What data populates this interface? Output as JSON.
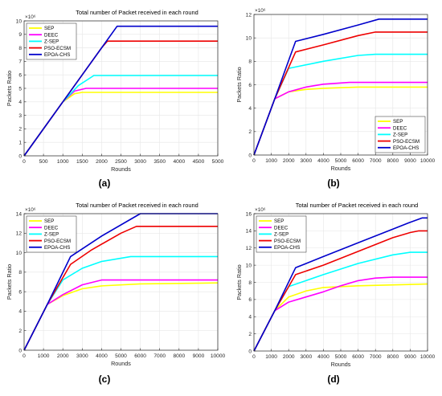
{
  "colors": {
    "SEP": "#ffff00",
    "DEEC": "#ff00ff",
    "Z-SEP": "#00ffff",
    "PSO-ECSM": "#ee0000",
    "EPOA-CHS": "#0000cc"
  },
  "chart_data": [
    {
      "type": "line",
      "caption": "(a)",
      "title": "Total number of Packet received in each round",
      "xlabel": "Rounds",
      "ylabel": "Packets Ratio",
      "exponent_label": "×10⁶",
      "xlim": [
        0,
        5000
      ],
      "ylim": [
        0,
        10
      ],
      "xticks": [
        0,
        500,
        1000,
        1500,
        2000,
        2500,
        3000,
        3500,
        4000,
        4500,
        5000
      ],
      "yticks": [
        0,
        1,
        2,
        3,
        4,
        5,
        6,
        7,
        8,
        9,
        10
      ],
      "grid": true,
      "legend_position": "top-left",
      "series": [
        {
          "name": "SEP",
          "x": [
            0,
            1000,
            1300,
            1500,
            5000
          ],
          "y": [
            0,
            4.0,
            4.6,
            4.7,
            4.7
          ]
        },
        {
          "name": "DEEC",
          "x": [
            0,
            1000,
            1300,
            1600,
            5000
          ],
          "y": [
            0,
            4.0,
            4.8,
            5.0,
            5.0
          ]
        },
        {
          "name": "Z-SEP",
          "x": [
            0,
            1000,
            1400,
            1800,
            5000
          ],
          "y": [
            0,
            4.0,
            5.2,
            5.95,
            5.95
          ]
        },
        {
          "name": "PSO-ECSM",
          "x": [
            0,
            1000,
            1500,
            2000,
            2150,
            5000
          ],
          "y": [
            0,
            4.0,
            6.0,
            8.0,
            8.5,
            8.5
          ]
        },
        {
          "name": "EPOA-CHS",
          "x": [
            0,
            1000,
            2000,
            2400,
            5000
          ],
          "y": [
            0,
            4.0,
            8.0,
            9.6,
            9.6
          ]
        }
      ]
    },
    {
      "type": "line",
      "caption": "(b)",
      "title": "",
      "xlabel": "Rounds",
      "ylabel": "Packets Ratio",
      "exponent_label": "×10⁶",
      "xlim": [
        0,
        10000
      ],
      "ylim": [
        0,
        12
      ],
      "xticks": [
        0,
        1000,
        2000,
        3000,
        4000,
        5000,
        6000,
        7000,
        8000,
        9000,
        10000
      ],
      "yticks": [
        0,
        2,
        4,
        6,
        8,
        10,
        12
      ],
      "grid": true,
      "legend_position": "bottom-right",
      "series": [
        {
          "name": "SEP",
          "x": [
            0,
            1200,
            2000,
            3000,
            4000,
            6000,
            10000
          ],
          "y": [
            0,
            4.8,
            5.4,
            5.6,
            5.7,
            5.8,
            5.8
          ]
        },
        {
          "name": "DEEC",
          "x": [
            0,
            1200,
            2000,
            3000,
            4000,
            5500,
            10000
          ],
          "y": [
            0,
            4.8,
            5.4,
            5.8,
            6.05,
            6.2,
            6.2
          ]
        },
        {
          "name": "Z-SEP",
          "x": [
            0,
            1200,
            2000,
            4000,
            6000,
            7000,
            10000
          ],
          "y": [
            0,
            4.8,
            7.4,
            8.0,
            8.5,
            8.6,
            8.6
          ]
        },
        {
          "name": "PSO-ECSM",
          "x": [
            0,
            1200,
            2400,
            4000,
            6000,
            7000,
            10000
          ],
          "y": [
            0,
            4.8,
            8.8,
            9.4,
            10.2,
            10.5,
            10.5
          ]
        },
        {
          "name": "EPOA-CHS",
          "x": [
            0,
            1200,
            2400,
            4000,
            6000,
            7200,
            10000
          ],
          "y": [
            0,
            4.8,
            9.7,
            10.3,
            11.1,
            11.6,
            11.6
          ]
        }
      ]
    },
    {
      "type": "line",
      "caption": "(c)",
      "title": "Total number of Packet received in each round",
      "xlabel": "Rounds",
      "ylabel": "Packets Ratio",
      "exponent_label": "×10⁶",
      "xlim": [
        0,
        10000
      ],
      "ylim": [
        0,
        14
      ],
      "xticks": [
        0,
        1000,
        2000,
        3000,
        4000,
        5000,
        6000,
        7000,
        8000,
        9000,
        10000
      ],
      "yticks": [
        0,
        2,
        4,
        6,
        8,
        10,
        12,
        14
      ],
      "grid": true,
      "legend_position": "top-left",
      "series": [
        {
          "name": "SEP",
          "x": [
            0,
            1200,
            2000,
            3000,
            4000,
            6000,
            10000
          ],
          "y": [
            0,
            4.7,
            5.6,
            6.3,
            6.6,
            6.8,
            6.9
          ]
        },
        {
          "name": "DEEC",
          "x": [
            0,
            1200,
            2000,
            3000,
            4000,
            10000
          ],
          "y": [
            0,
            4.7,
            5.7,
            6.7,
            7.2,
            7.2
          ]
        },
        {
          "name": "Z-SEP",
          "x": [
            0,
            1200,
            2000,
            3000,
            4000,
            5500,
            10000
          ],
          "y": [
            0,
            4.7,
            7.2,
            8.4,
            9.1,
            9.6,
            9.6
          ]
        },
        {
          "name": "PSO-ECSM",
          "x": [
            0,
            1200,
            2400,
            3500,
            5000,
            5800,
            10000
          ],
          "y": [
            0,
            4.7,
            8.8,
            10.3,
            12.0,
            12.7,
            12.7
          ]
        },
        {
          "name": "EPOA-CHS",
          "x": [
            0,
            1200,
            2400,
            4000,
            6000,
            10000
          ],
          "y": [
            0,
            4.7,
            9.6,
            11.7,
            14.0,
            14.0
          ]
        }
      ]
    },
    {
      "type": "line",
      "caption": "(d)",
      "title": "Total number of Packet received in each round",
      "xlabel": "Rounds",
      "ylabel": "Packets Ratio",
      "exponent_label": "×10⁶",
      "xlim": [
        0,
        10000
      ],
      "ylim": [
        0,
        16
      ],
      "xticks": [
        0,
        1000,
        2000,
        3000,
        4000,
        5000,
        6000,
        7000,
        8000,
        9000,
        10000
      ],
      "yticks": [
        0,
        2,
        4,
        6,
        8,
        10,
        12,
        14,
        16
      ],
      "grid": true,
      "legend_position": "top-left",
      "series": [
        {
          "name": "SEP",
          "x": [
            0,
            1200,
            2000,
            3000,
            4000,
            6000,
            8000,
            10000
          ],
          "y": [
            0,
            4.7,
            6.3,
            7.0,
            7.4,
            7.6,
            7.7,
            7.8
          ]
        },
        {
          "name": "DEEC",
          "x": [
            0,
            1200,
            2000,
            3000,
            4000,
            5000,
            6000,
            7000,
            8000,
            10000
          ],
          "y": [
            0,
            4.7,
            5.7,
            6.3,
            6.9,
            7.6,
            8.2,
            8.5,
            8.6,
            8.6
          ]
        },
        {
          "name": "Z-SEP",
          "x": [
            0,
            1200,
            2000,
            4000,
            6000,
            8000,
            9000,
            10000
          ],
          "y": [
            0,
            4.7,
            7.5,
            8.9,
            10.2,
            11.2,
            11.5,
            11.5
          ]
        },
        {
          "name": "PSO-ECSM",
          "x": [
            0,
            1200,
            2400,
            4000,
            6000,
            8000,
            9000,
            9500,
            10000
          ],
          "y": [
            0,
            4.7,
            8.9,
            10.0,
            11.6,
            13.2,
            13.8,
            14.0,
            14.0
          ]
        },
        {
          "name": "EPOA-CHS",
          "x": [
            0,
            1200,
            2400,
            4000,
            6000,
            8000,
            9000,
            9700,
            10000
          ],
          "y": [
            0,
            4.7,
            9.7,
            11.0,
            12.6,
            14.2,
            15.0,
            15.5,
            15.5
          ]
        }
      ]
    }
  ]
}
